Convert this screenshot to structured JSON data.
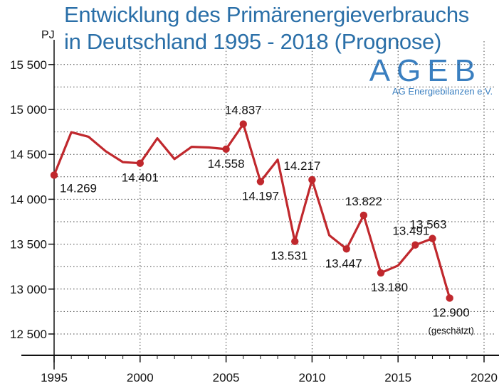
{
  "title": {
    "line1": "Entwicklung des Primärenergieverbrauchs",
    "line2": "in Deutschland 1995 - 2018 (Prognose)"
  },
  "logo": {
    "main": "AGEB",
    "sub": "AG Energiebilanzen e.V."
  },
  "colors": {
    "line": "#c0282d",
    "title": "#2a6fa8",
    "axis": "#111111"
  },
  "chart_data": {
    "type": "line",
    "title": "Entwicklung des Primärenergieverbrauchs in Deutschland 1995 - 2018 (Prognose)",
    "ylabel": "PJ",
    "xlabel": "",
    "xlim": [
      1995,
      2021
    ],
    "ylim": [
      12250,
      15800
    ],
    "xticks": [
      1995,
      2000,
      2005,
      2010,
      2015,
      2020
    ],
    "yticks": [
      12500,
      13000,
      13500,
      14000,
      14500,
      15000,
      15500
    ],
    "ytick_labels": [
      "12 500",
      "13 000",
      "13 500",
      "14 000",
      "14 500",
      "15 000",
      "15 500"
    ],
    "grid": "dotted horizontal and vertical",
    "series": [
      {
        "name": "Primärenergieverbrauch",
        "x": [
          1995,
          1996,
          1997,
          1998,
          1999,
          2000,
          2001,
          2002,
          2003,
          2004,
          2005,
          2006,
          2007,
          2008,
          2009,
          2010,
          2011,
          2012,
          2013,
          2014,
          2015,
          2016,
          2017,
          2018
        ],
        "values": [
          14269,
          14746,
          14696,
          14535,
          14414,
          14401,
          14679,
          14448,
          14584,
          14577,
          14558,
          14837,
          14197,
          14441,
          13531,
          14217,
          13599,
          13447,
          13822,
          13180,
          13262,
          13491,
          13563,
          12900
        ]
      }
    ],
    "annotations": [
      {
        "x": 1995,
        "label": "14.269",
        "position": "below-right"
      },
      {
        "x": 2000,
        "label": "14.401",
        "position": "below"
      },
      {
        "x": 2005,
        "label": "14.558",
        "position": "below"
      },
      {
        "x": 2006,
        "label": "14.837",
        "position": "above"
      },
      {
        "x": 2007,
        "label": "14.197",
        "position": "below"
      },
      {
        "x": 2010,
        "label": "14.217",
        "position": "above-left"
      },
      {
        "x": 2009,
        "label": "13.531",
        "position": "below"
      },
      {
        "x": 2013,
        "label": "13.822",
        "position": "above"
      },
      {
        "x": 2012,
        "label": "13.447",
        "position": "below"
      },
      {
        "x": 2014,
        "label": "13.180",
        "position": "below"
      },
      {
        "x": 2016,
        "label": "13.491",
        "position": "above"
      },
      {
        "x": 2017,
        "label": "13.563",
        "position": "above"
      },
      {
        "x": 2018,
        "label": "12.900",
        "position": "below"
      }
    ],
    "note": {
      "x": 2018,
      "label": "(geschätzt)"
    }
  }
}
